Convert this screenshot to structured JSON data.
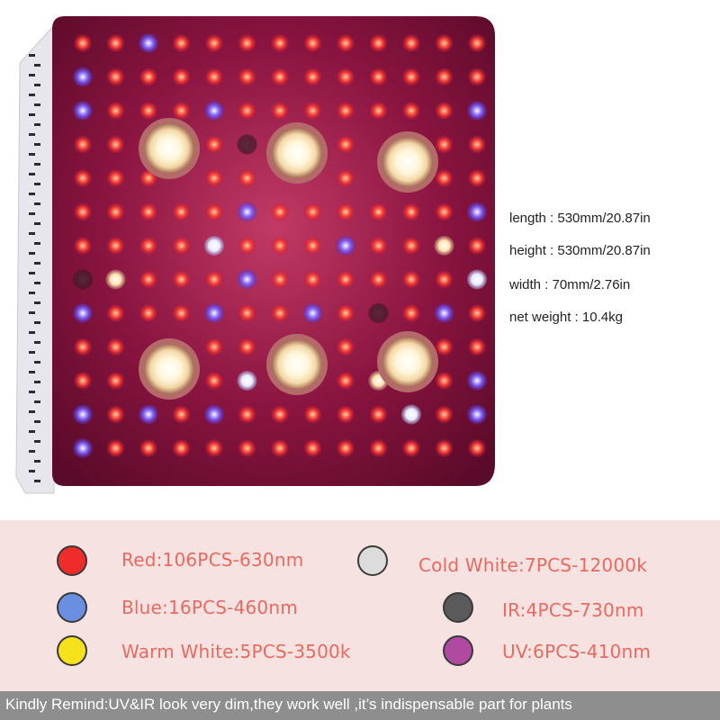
{
  "specs": {
    "length": "length : 530mm/20.87in",
    "height": "height : 530mm/20.87in",
    "width": "width : 70mm/2.76in",
    "weight": "net weight : 10.4kg"
  },
  "legend": [
    {
      "label": "Red:106PCS-630nm",
      "color": "#ef2b2b"
    },
    {
      "label": "Blue:16PCS-460nm",
      "color": "#6a8ee0"
    },
    {
      "label": "Warm White:5PCS-3500k",
      "color": "#f6e21a"
    },
    {
      "label": "Cold White:7PCS-12000k",
      "color": "#dcdcdc"
    },
    {
      "label": "IR:4PCS-730nm",
      "color": "#5a5a5a"
    },
    {
      "label": "UV:6PCS-410nm",
      "color": "#b04aa0"
    }
  ],
  "reminder": "Kindly Remind:UV&IR look very dim,they work well ,it’s indispensable part for plants",
  "colors": {
    "panel_background": "#f7e2e2",
    "board": "#7a0f3a",
    "heatsink": "#e8e8ee",
    "reminder_bar": "#8e8e8e"
  }
}
